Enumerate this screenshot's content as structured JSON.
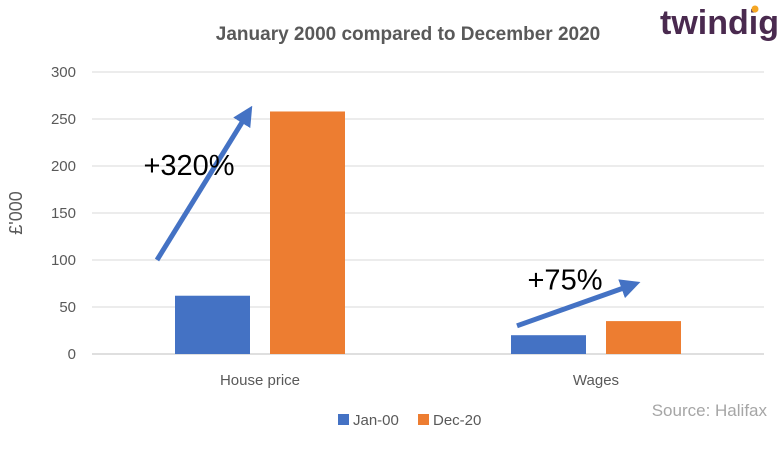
{
  "brand": {
    "name": "twindig",
    "accent": "#4a2a4f",
    "dot_color": "#f5a623"
  },
  "source": "Source: Halifax",
  "chart_data": {
    "type": "bar",
    "title": "January 2000 compared to December 2020",
    "xlabel": "",
    "ylabel": "£'000",
    "categories": [
      "House price",
      "Wages"
    ],
    "series": [
      {
        "name": "Jan-00",
        "color": "#4472c4",
        "values": [
          62,
          20
        ]
      },
      {
        "name": "Dec-20",
        "color": "#ed7d31",
        "values": [
          258,
          35
        ]
      }
    ],
    "ylim": [
      0,
      300
    ],
    "yticks": [
      0,
      50,
      100,
      150,
      200,
      250,
      300
    ],
    "grid": true,
    "legend": "bottom",
    "annotations": [
      {
        "category": "House price",
        "text": "+320%",
        "arrow_from": 100,
        "arrow_to": 255
      },
      {
        "category": "Wages",
        "text": "+75%",
        "arrow_from": 30,
        "arrow_to": 73
      }
    ]
  }
}
